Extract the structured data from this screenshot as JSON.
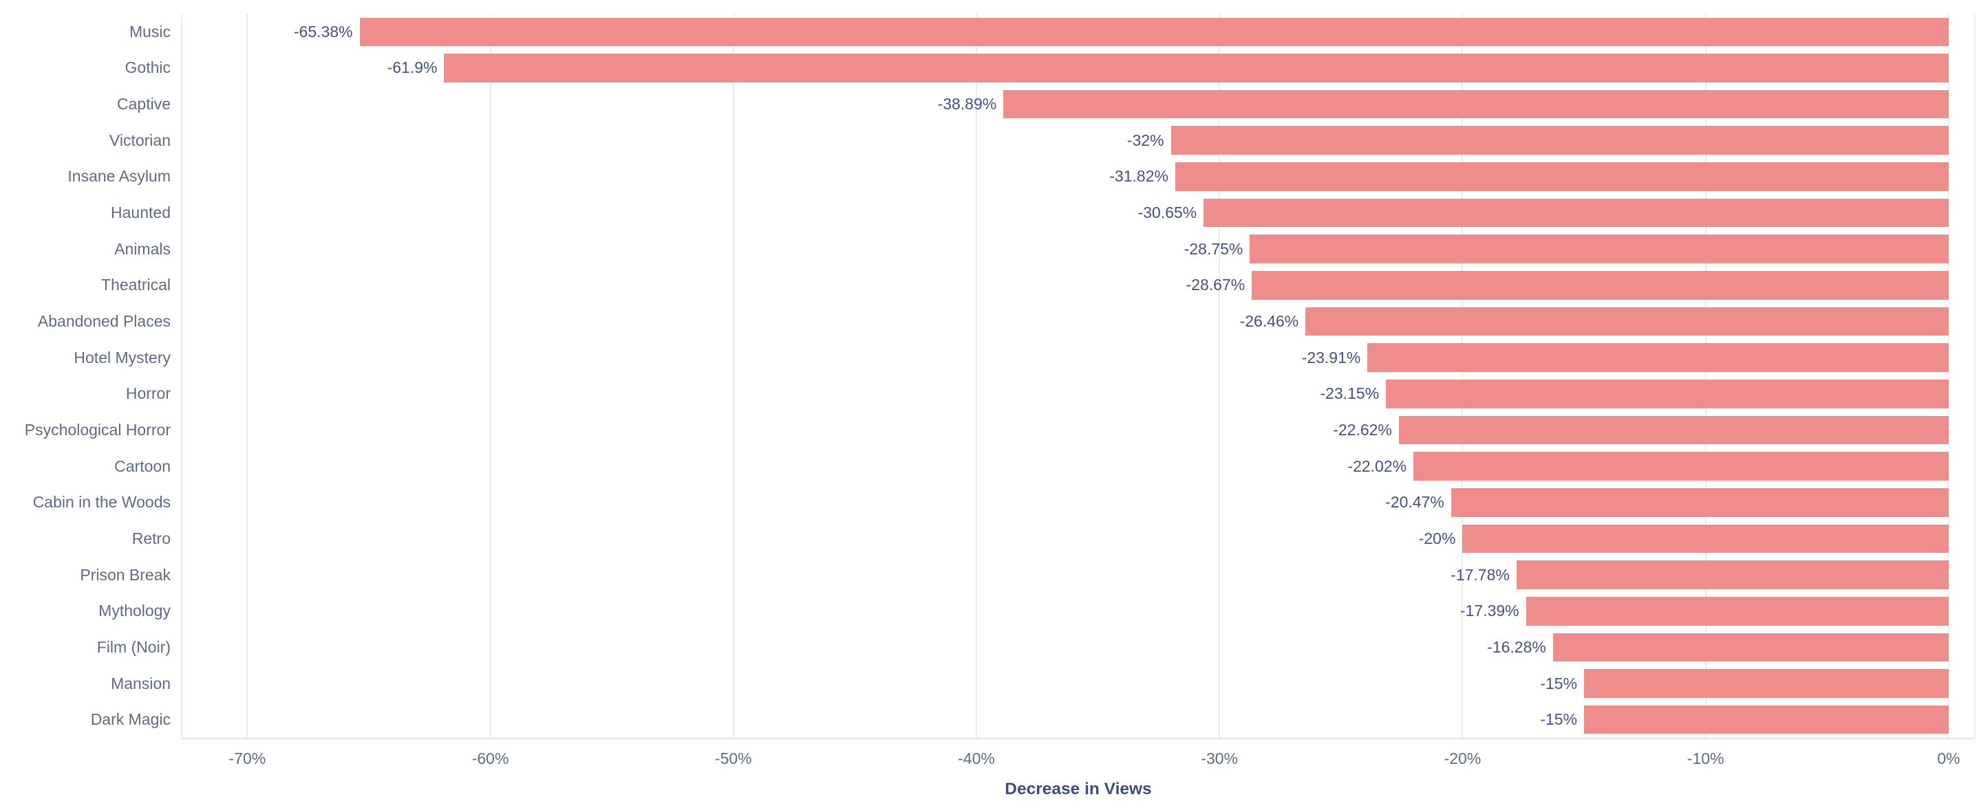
{
  "chart_data": {
    "type": "bar",
    "orientation": "horizontal",
    "title": "",
    "xlabel": "Decrease in Views",
    "ylabel": "",
    "categories": [
      "Music",
      "Gothic",
      "Captive",
      "Victorian",
      "Insane Asylum",
      "Haunted",
      "Animals",
      "Theatrical",
      "Abandoned Places",
      "Hotel Mystery",
      "Horror",
      "Psychological Horror",
      "Cartoon",
      "Cabin in the Woods",
      "Retro",
      "Prison Break",
      "Mythology",
      "Film (Noir)",
      "Mansion",
      "Dark Magic"
    ],
    "values": [
      -65.38,
      -61.9,
      -38.89,
      -32,
      -31.82,
      -30.65,
      -28.75,
      -28.67,
      -26.46,
      -23.91,
      -23.15,
      -22.62,
      -22.02,
      -20.47,
      -20,
      -17.78,
      -17.39,
      -16.28,
      -15,
      -15
    ],
    "value_labels": [
      "-65.38%",
      "-61.9%",
      "-38.89%",
      "-32%",
      "-31.82%",
      "-30.65%",
      "-28.75%",
      "-28.67%",
      "-26.46%",
      "-23.91%",
      "-23.15%",
      "-22.62%",
      "-22.02%",
      "-20.47%",
      "-20%",
      "-17.78%",
      "-17.39%",
      "-16.28%",
      "-15%",
      "-15%"
    ],
    "x_ticks": [
      {
        "value": -70,
        "label": "-70%"
      },
      {
        "value": -60,
        "label": "-60%"
      },
      {
        "value": -50,
        "label": "-50%"
      },
      {
        "value": -40,
        "label": "-40%"
      },
      {
        "value": -30,
        "label": "-30%"
      },
      {
        "value": -20,
        "label": "-20%"
      },
      {
        "value": -10,
        "label": "-10%"
      },
      {
        "value": 0,
        "label": "0%"
      }
    ],
    "xlim": [
      -72.7,
      1.08
    ],
    "grid": true,
    "legend": null,
    "bar_label_position": "outside-left",
    "colors": {
      "bar": "#ef8c8c",
      "value_label": "#44527d",
      "category_label": "#5e6b80",
      "tick_label": "#5e6b80",
      "axis_title": "#3e4d78",
      "gridline": "#ececec",
      "axis_line": "#e3e3e3",
      "background": "#ffffff"
    }
  }
}
